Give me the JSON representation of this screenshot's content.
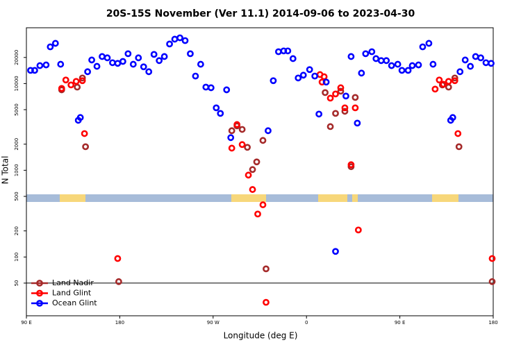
{
  "chart_data": {
    "type": "scatter",
    "title": "20S-15S November (Ver 11.1)   2014-09-06 to 2023-04-30",
    "x_label": "Longitude (deg E)",
    "y_label": "N Total",
    "log_y": true,
    "legend": "lower left",
    "hline": 50,
    "xlim": [
      90,
      540
    ],
    "xticks": [
      {
        "value": 90,
        "label": "90 E"
      },
      180,
      {
        "value": 270,
        "label": "90 W"
      },
      {
        "value": 360,
        "label": "0"
      },
      {
        "value": 450,
        "label": "90 E"
      },
      {
        "value": 540,
        "label": "180"
      }
    ],
    "ylim": [
      21,
      44000
    ],
    "yticks": [
      50,
      100,
      200,
      500,
      1000,
      2000,
      5000,
      10000,
      20000
    ],
    "series": [
      {
        "name": "Land Nadir",
        "color": "#a52a2a",
        "x": [
          124,
          139,
          144,
          147,
          179,
          288,
          293,
          298,
          303,
          308,
          312,
          318,
          321,
          378,
          383,
          388,
          393,
          397,
          403,
          407,
          491,
          497,
          503,
          507,
          539
        ],
        "values": [
          8470,
          9100,
          11600,
          1870,
          52,
          2860,
          3250,
          2960,
          1840,
          1020,
          1250,
          2210,
          73,
          7870,
          3190,
          4530,
          8170,
          4790,
          1100,
          6920,
          9640,
          9100,
          11600,
          1870,
          52
        ]
      },
      {
        "name": "Land Glint",
        "color": "#ff0000",
        "x": [
          124,
          128,
          133,
          138,
          144,
          146,
          178,
          288,
          293,
          298,
          304,
          308,
          313,
          318,
          321,
          373,
          375,
          377,
          383,
          388,
          393,
          397,
          403,
          407,
          410,
          484,
          488,
          492,
          497,
          503,
          506,
          539
        ],
        "values": [
          8790,
          11000,
          9640,
          10600,
          10800,
          2650,
          96,
          1800,
          3370,
          1980,
          880,
          600,
          313,
          400,
          30,
          12700,
          10400,
          12000,
          6790,
          7590,
          8950,
          5250,
          1160,
          5250,
          205,
          8630,
          11000,
          9820,
          10600,
          10800,
          2650,
          96
        ]
      },
      {
        "name": "Ocean Glint",
        "color": "#0000ff",
        "x": [
          94,
          98,
          103,
          109,
          113,
          118,
          123,
          140,
          142,
          149,
          153,
          158,
          163,
          168,
          173,
          178,
          183,
          188,
          193,
          198,
          203,
          208,
          213,
          218,
          223,
          228,
          233,
          238,
          243,
          248,
          253,
          258,
          263,
          268,
          273,
          277,
          283,
          287,
          323,
          328,
          333,
          338,
          342,
          347,
          352,
          357,
          363,
          368,
          372,
          379,
          388,
          398,
          403,
          409,
          413,
          417,
          423,
          427,
          432,
          437,
          442,
          448,
          452,
          458,
          462,
          468,
          472,
          478,
          482,
          499,
          501,
          508,
          513,
          518,
          523,
          528,
          533,
          538
        ],
        "values": [
          14200,
          14200,
          16100,
          16400,
          26500,
          29100,
          16700,
          3770,
          4060,
          13700,
          18700,
          15800,
          20500,
          19800,
          17400,
          17100,
          18000,
          22100,
          16700,
          19800,
          15600,
          13700,
          21700,
          18400,
          20500,
          28600,
          32500,
          33700,
          31300,
          22100,
          12200,
          16700,
          9100,
          8950,
          5250,
          4530,
          8470,
          2380,
          2860,
          10800,
          23300,
          23800,
          23800,
          19400,
          11600,
          12500,
          14500,
          12200,
          4450,
          10400,
          116,
          7180,
          20500,
          3500,
          13200,
          22100,
          23300,
          19400,
          18400,
          18400,
          16100,
          16700,
          14200,
          14200,
          16100,
          16400,
          26500,
          29100,
          16700,
          3770,
          4060,
          13700,
          18700,
          15800,
          20500,
          19800,
          17400,
          17100
        ]
      }
    ]
  }
}
